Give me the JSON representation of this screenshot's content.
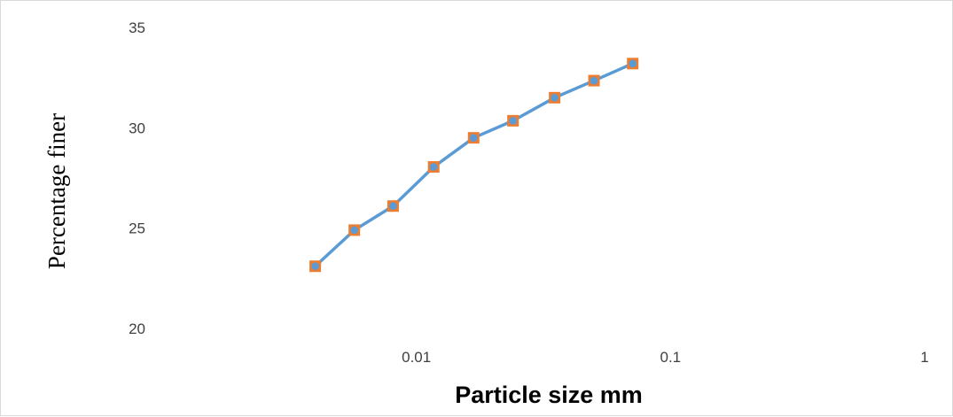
{
  "chart_data": {
    "type": "line",
    "xscale": "log",
    "xlabel": "Particle size mm",
    "ylabel": "Percentage finer",
    "xlim": [
      0.001,
      1
    ],
    "ylim": [
      20,
      35
    ],
    "xticks": [
      {
        "value": 0.01,
        "label": "0.01"
      },
      {
        "value": 0.1,
        "label": "0.1"
      },
      {
        "value": 1,
        "label": "1"
      }
    ],
    "yticks": [
      {
        "value": 20,
        "label": "20"
      },
      {
        "value": 25,
        "label": "25"
      },
      {
        "value": 30,
        "label": "30"
      },
      {
        "value": 35,
        "label": "35"
      }
    ],
    "grid": false,
    "legend": "none",
    "series": [
      {
        "color": "#5b9bd5",
        "marker_fill": "#ed7d31",
        "points": [
          {
            "x": 0.004,
            "y": 23.1
          },
          {
            "x": 0.0057,
            "y": 24.9
          },
          {
            "x": 0.0081,
            "y": 26.1
          },
          {
            "x": 0.0117,
            "y": 28.05
          },
          {
            "x": 0.0168,
            "y": 29.5
          },
          {
            "x": 0.024,
            "y": 30.35
          },
          {
            "x": 0.035,
            "y": 31.5
          },
          {
            "x": 0.05,
            "y": 32.35
          },
          {
            "x": 0.071,
            "y": 33.2
          }
        ]
      }
    ]
  }
}
